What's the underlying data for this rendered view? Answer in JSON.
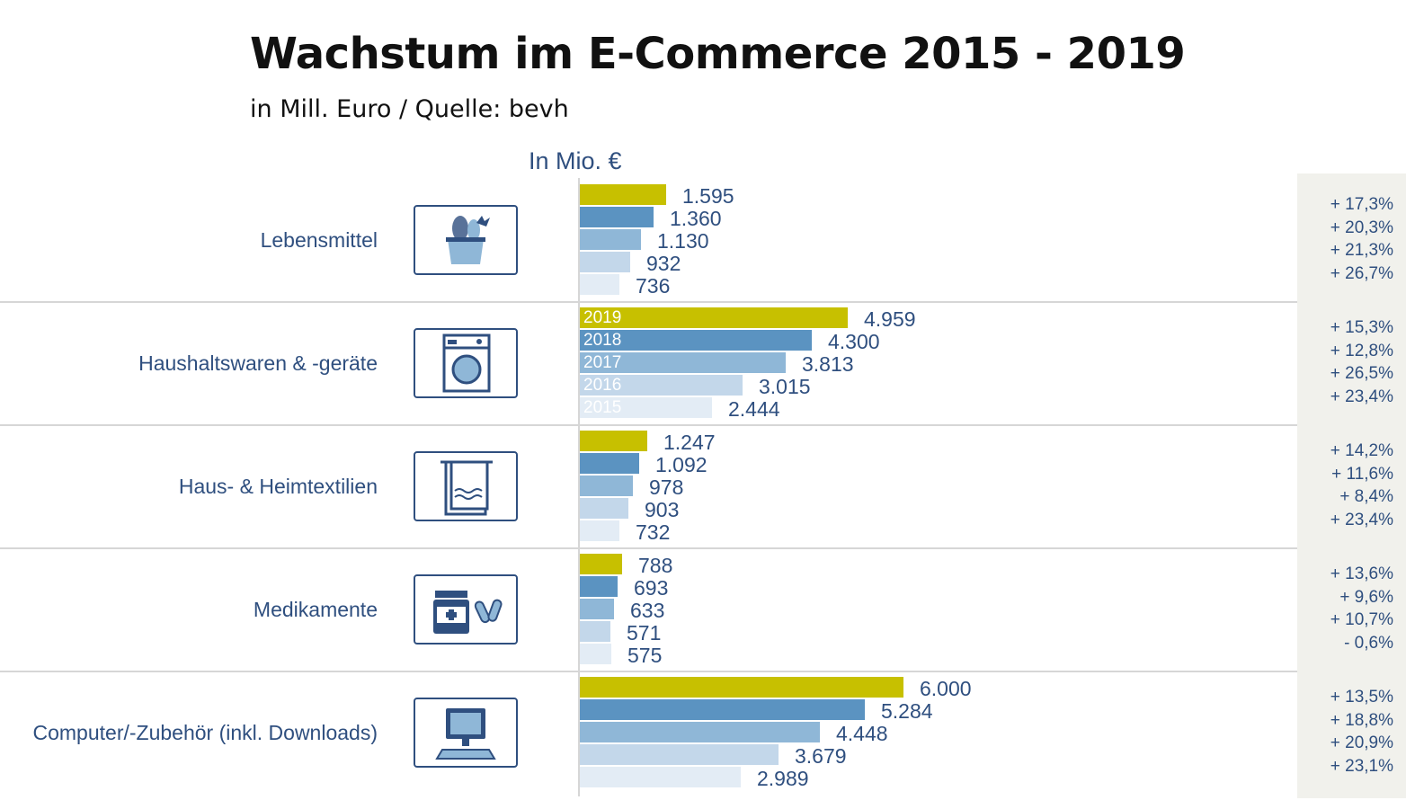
{
  "chart_data": {
    "type": "bar",
    "orientation": "horizontal",
    "title": "Wachstum im E-Commerce 2015 - 2019",
    "subtitle": "in Mill. Euro / Quelle: bevh",
    "unit_label": "In Mio. €",
    "years": [
      "2019",
      "2018",
      "2017",
      "2016",
      "2015"
    ],
    "year_colors": [
      "#c7c000",
      "#5b93c1",
      "#8fb7d7",
      "#c3d7ea",
      "#e3ecf5"
    ],
    "grid": false,
    "legend_placement": "inline",
    "categories": [
      {
        "name": "Lebensmittel",
        "icon": "grocery-basket-icon",
        "values": [
          1595,
          1360,
          1130,
          932,
          736
        ],
        "labels": [
          "1.595",
          "1.360",
          "1.130",
          "932",
          "736"
        ],
        "growth": [
          "+ 17,3%",
          "+ 20,3%",
          "+ 21,3%",
          "+ 26,7%"
        ],
        "show_year_labels": false
      },
      {
        "name": "Haushaltswaren & -geräte",
        "icon": "washing-machine-icon",
        "values": [
          4959,
          4300,
          3813,
          3015,
          2444
        ],
        "labels": [
          "4.959",
          "4.300",
          "3.813",
          "3.015",
          "2.444"
        ],
        "growth": [
          "+ 15,3%",
          "+ 12,8%",
          "+ 26,5%",
          "+ 23,4%"
        ],
        "show_year_labels": true
      },
      {
        "name": "Haus- & Heimtextilien",
        "icon": "towel-icon",
        "values": [
          1247,
          1092,
          978,
          903,
          732
        ],
        "labels": [
          "1.247",
          "1.092",
          "978",
          "903",
          "732"
        ],
        "growth": [
          "+ 14,2%",
          "+ 11,6%",
          "+ 8,4%",
          "+ 23,4%"
        ],
        "show_year_labels": false
      },
      {
        "name": "Medikamente",
        "icon": "medicine-icon",
        "values": [
          788,
          693,
          633,
          571,
          575
        ],
        "labels": [
          "788",
          "693",
          "633",
          "571",
          "575"
        ],
        "growth": [
          "+ 13,6%",
          "+ 9,6%",
          "+ 10,7%",
          "- 0,6%"
        ],
        "show_year_labels": false
      },
      {
        "name": "Computer/-Zubehör (inkl. Downloads)",
        "icon": "computer-icon",
        "values": [
          6000,
          5284,
          4448,
          3679,
          2989
        ],
        "labels": [
          "6.000",
          "5.284",
          "4.448",
          "3.679",
          "2.989"
        ],
        "growth": [
          "+ 13,5%",
          "+ 18,8%",
          "+ 20,9%",
          "+ 23,1%"
        ],
        "show_year_labels": false
      }
    ],
    "xlim": [
      0,
      6000
    ]
  }
}
